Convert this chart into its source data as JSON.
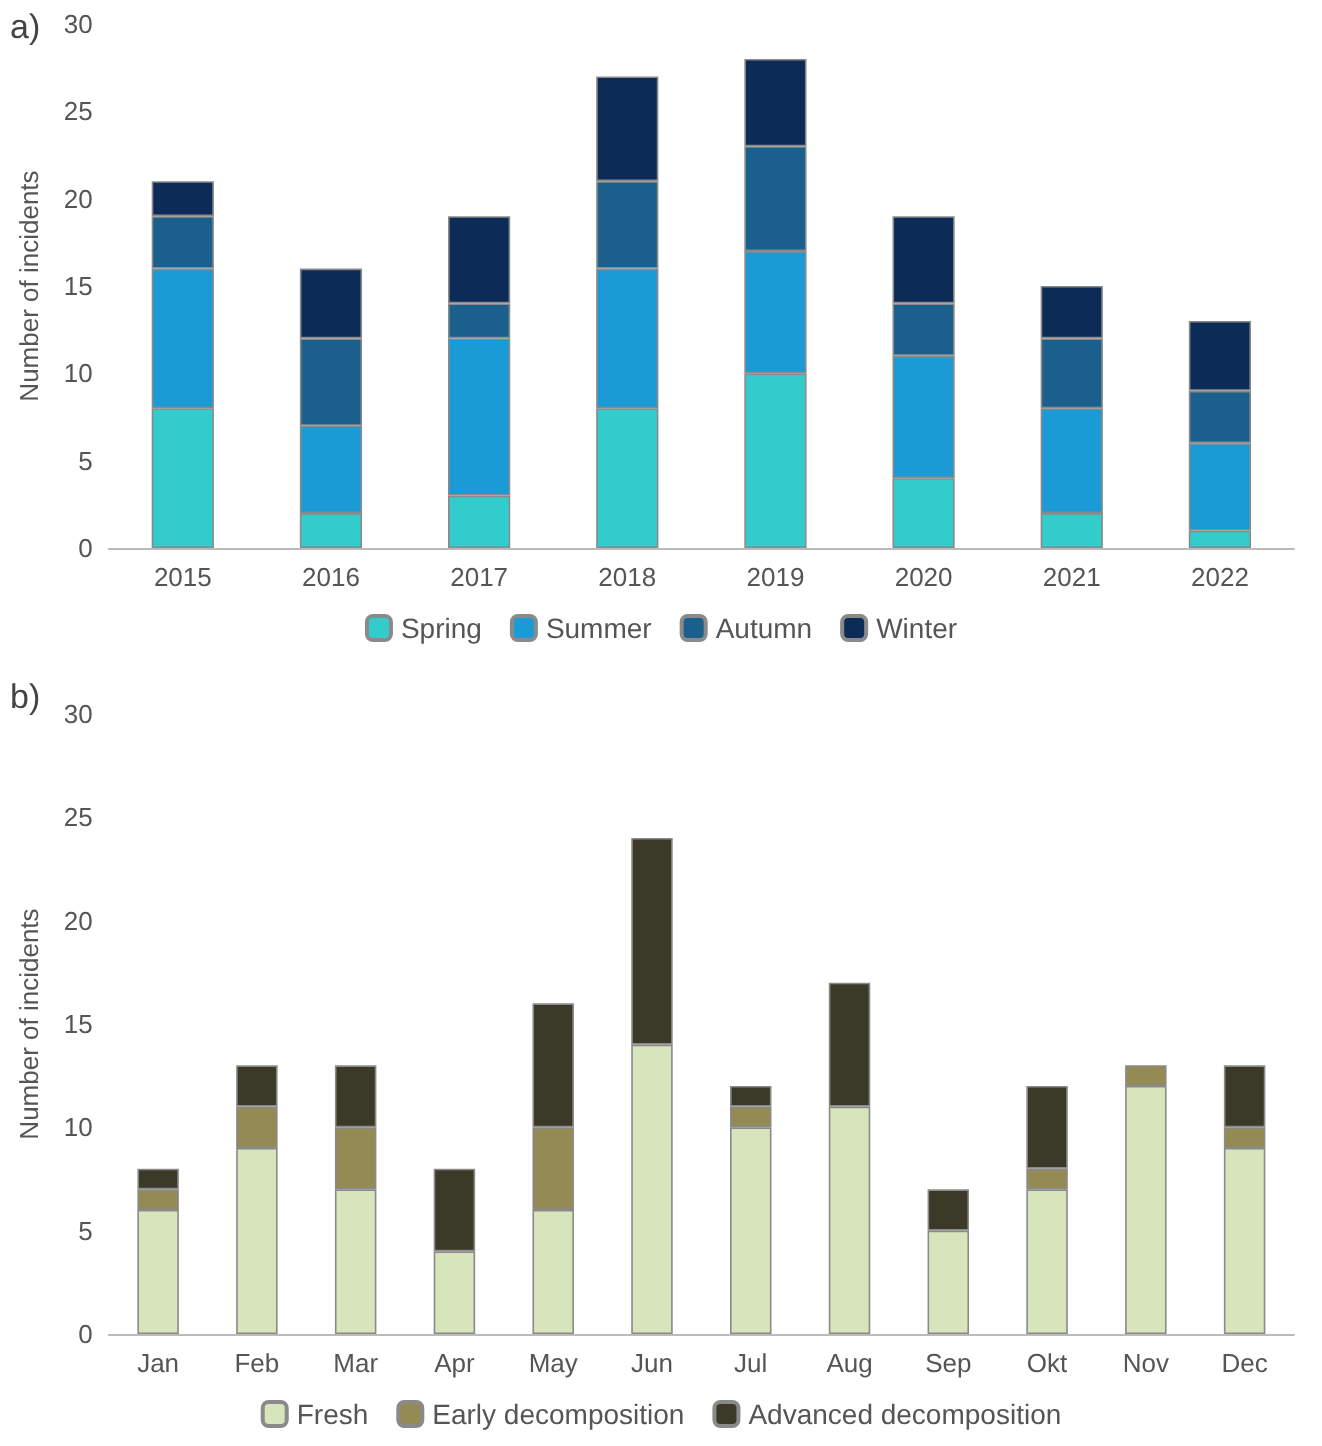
{
  "chart_data": [
    {
      "type": "bar",
      "title": "a)",
      "ylabel": "Number of incidents",
      "stacked": true,
      "legend": "bottom",
      "grid": false,
      "categories": [
        "2015",
        "2016",
        "2017",
        "2018",
        "2019",
        "2020",
        "2021",
        "2022"
      ],
      "ylim": [
        0,
        30
      ],
      "yticks": [
        0,
        5,
        10,
        15,
        20,
        25,
        30
      ],
      "series": [
        {
          "name": "Spring",
          "color": "#33cccc",
          "values": [
            8,
            2,
            3,
            8,
            10,
            4,
            2,
            1
          ]
        },
        {
          "name": "Summer",
          "color": "#1b9bd6",
          "values": [
            8,
            5,
            9,
            8,
            7,
            7,
            6,
            5
          ]
        },
        {
          "name": "Autumn",
          "color": "#1b5f8c",
          "values": [
            3,
            5,
            2,
            5,
            6,
            3,
            4,
            3
          ]
        },
        {
          "name": "Winter",
          "color": "#0c2b57",
          "values": [
            2,
            4,
            5,
            6,
            5,
            5,
            3,
            4
          ]
        }
      ]
    },
    {
      "type": "bar",
      "title": "b)",
      "ylabel": "Number of incidents",
      "stacked": true,
      "legend": "bottom",
      "grid": false,
      "categories": [
        "Jan",
        "Feb",
        "Mar",
        "Apr",
        "May",
        "Jun",
        "Jul",
        "Aug",
        "Sep",
        "Okt",
        "Nov",
        "Dec"
      ],
      "ylim": [
        0,
        30
      ],
      "yticks": [
        0,
        5,
        10,
        15,
        20,
        25,
        30
      ],
      "series": [
        {
          "name": "Fresh",
          "color": "#d8e4bc",
          "values": [
            6,
            9,
            7,
            4,
            6,
            14,
            10,
            11,
            5,
            7,
            12,
            9
          ]
        },
        {
          "name": "Early decomposition",
          "color": "#948a54",
          "values": [
            1,
            2,
            3,
            0,
            4,
            0,
            1,
            0,
            0,
            1,
            1,
            1
          ]
        },
        {
          "name": "Advanced decomposition",
          "color": "#3b3a28",
          "values": [
            1,
            2,
            3,
            4,
            6,
            10,
            1,
            6,
            2,
            4,
            0,
            3
          ]
        }
      ]
    }
  ]
}
